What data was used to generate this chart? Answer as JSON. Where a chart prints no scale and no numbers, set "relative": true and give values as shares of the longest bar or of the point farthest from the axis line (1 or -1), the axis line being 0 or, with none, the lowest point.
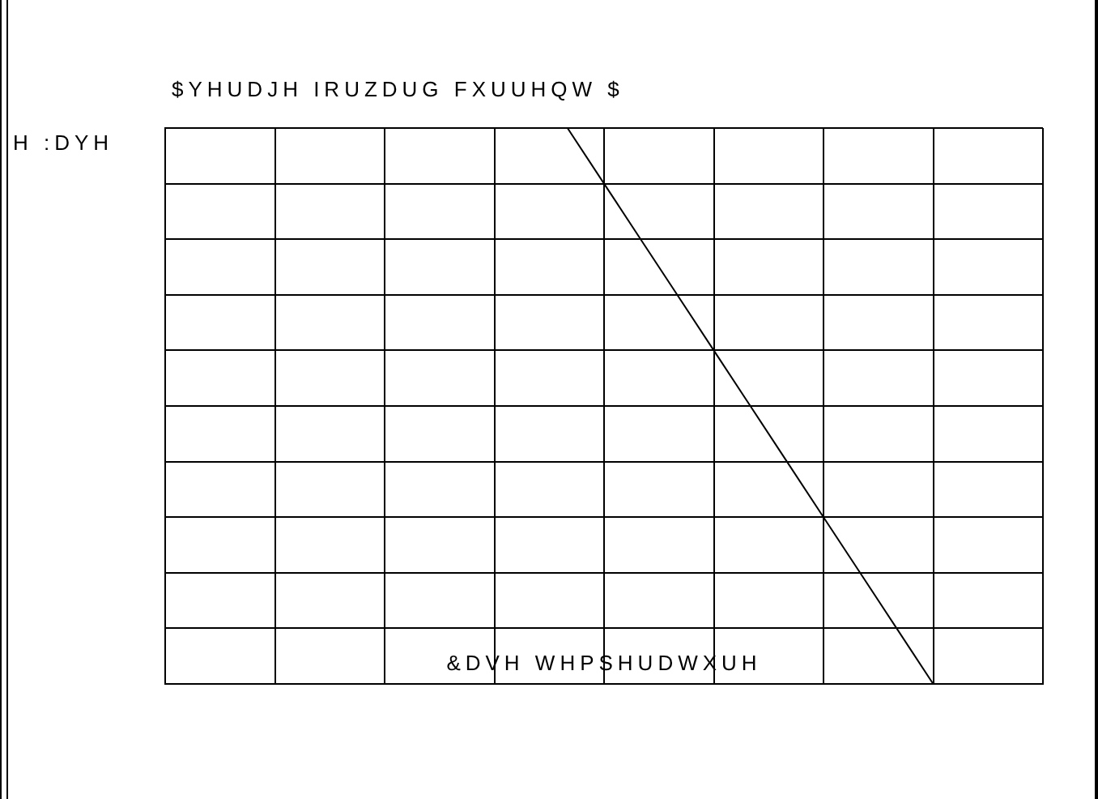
{
  "chart_data": {
    "type": "line",
    "title": "$YHUDJH IRUZDUG FXUUHQW $",
    "ylabel": "H :DYH",
    "xlabel": "&DVH WHPSHUDWXUH",
    "relative": true,
    "grid": true,
    "legend": false,
    "marker": "none",
    "line_style": "solid",
    "categories": [
      null,
      null,
      null,
      null,
      null,
      null,
      null,
      null,
      null,
      null,
      null,
      null,
      null,
      null,
      null,
      null,
      null,
      null,
      null,
      null,
      null,
      null,
      null,
      null,
      null
    ],
    "series": [
      {
        "color": "#000000",
        "values": [
          null,
          null,
          null,
          null,
          null,
          null,
          null,
          null,
          null,
          null,
          null,
          1.0,
          0.9,
          0.8,
          0.7,
          0.6,
          0.5,
          0.4,
          0.3,
          0.2,
          0.1,
          0.0,
          null,
          null,
          null
        ]
      }
    ]
  }
}
